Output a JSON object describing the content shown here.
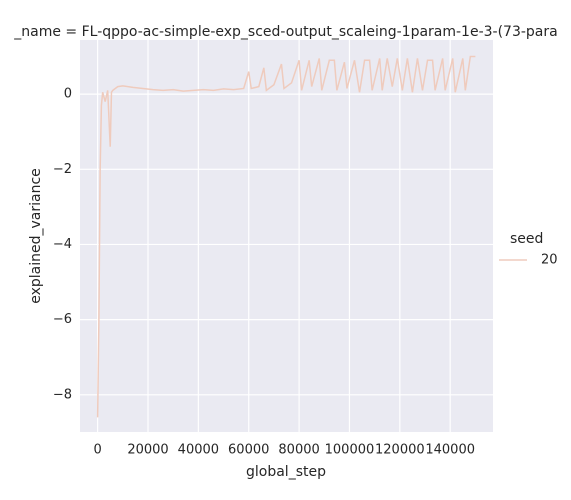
{
  "chart_data": {
    "type": "line",
    "title": "_name = FL-qppo-ac-simple-exp_sced-output_scaleing-1param-1e-3-(73-para",
    "x_label": "global_step",
    "y_label": "explained_variance",
    "legend_title": "seed",
    "x": [
      0,
      500,
      1000,
      1500,
      2000,
      3000,
      4000,
      5000,
      5500,
      6000,
      8000,
      10000,
      14000,
      18000,
      22000,
      26000,
      30000,
      34000,
      38000,
      42000,
      46000,
      50000,
      54000,
      58000,
      60000,
      61000,
      64000,
      66000,
      67000,
      70000,
      73000,
      74000,
      77000,
      80000,
      81000,
      84000,
      85000,
      88000,
      89000,
      92000,
      94000,
      95000,
      98000,
      99000,
      102000,
      104000,
      106000,
      108000,
      109000,
      112000,
      113000,
      115000,
      117000,
      119000,
      121000,
      123000,
      125000,
      127000,
      129000,
      131000,
      133000,
      134000,
      137000,
      138000,
      141000,
      142000,
      145000,
      146000,
      148000,
      150000
    ],
    "series": [
      {
        "name": "20",
        "color": "#efcbbd",
        "values": [
          -8.6,
          -6,
          -2,
          -0.3,
          0.05,
          -0.2,
          0.1,
          -1.4,
          0.05,
          0.1,
          0.2,
          0.22,
          0.18,
          0.15,
          0.12,
          0.1,
          0.12,
          0.08,
          0.1,
          0.12,
          0.1,
          0.14,
          0.12,
          0.15,
          0.6,
          0.15,
          0.2,
          0.7,
          0.1,
          0.25,
          0.8,
          0.15,
          0.3,
          0.9,
          0.1,
          0.9,
          0.2,
          0.95,
          0.1,
          0.9,
          0.9,
          0.1,
          0.85,
          0.15,
          0.9,
          0.05,
          0.9,
          0.9,
          0.1,
          0.95,
          0.1,
          0.95,
          0.2,
          0.95,
          0.1,
          0.95,
          0.05,
          0.95,
          0.1,
          0.9,
          0.9,
          0.1,
          0.95,
          0.1,
          0.95,
          0.05,
          0.95,
          0.1,
          1.0,
          1.0
        ]
      }
    ],
    "xlim": [
      -7000,
      157000
    ],
    "ylim": [
      -8.99,
      1.44
    ],
    "xticks": [
      0,
      20000,
      40000,
      60000,
      80000,
      100000,
      120000,
      140000
    ],
    "yticks": [
      {
        "value": -8,
        "label": "−8"
      },
      {
        "value": -6,
        "label": "−6"
      },
      {
        "value": -4,
        "label": "−4"
      },
      {
        "value": -2,
        "label": "−2"
      },
      0
    ],
    "grid": true
  }
}
